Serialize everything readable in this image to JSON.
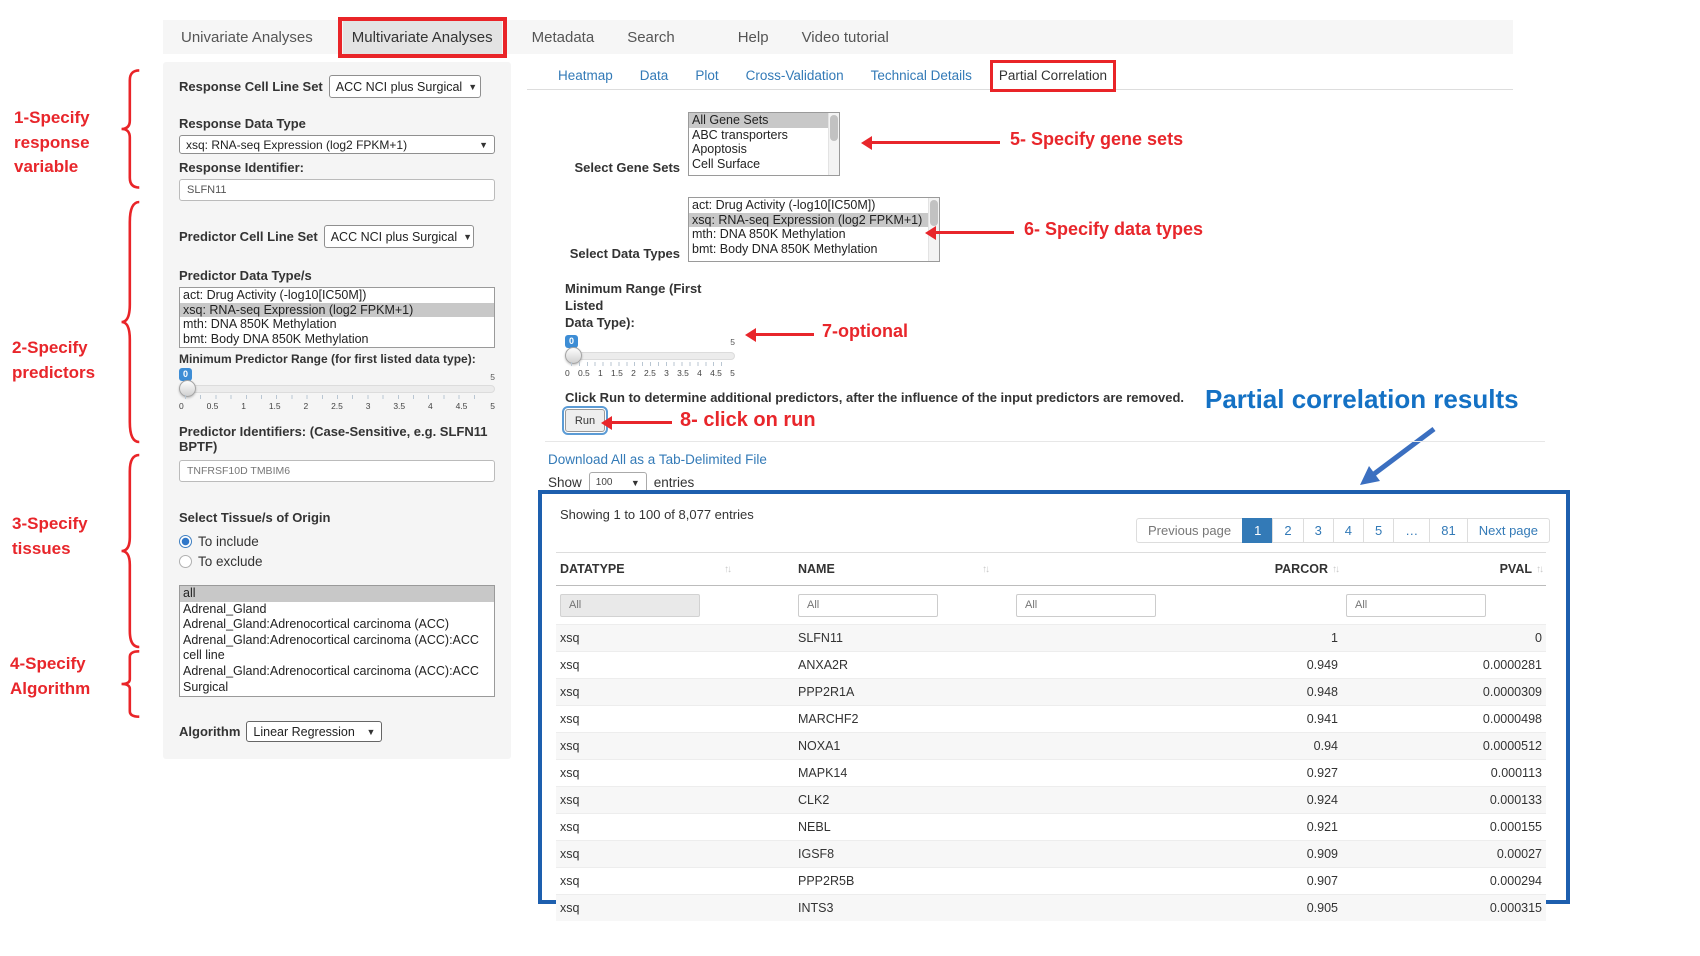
{
  "colors": {
    "annotation_red": "#e92428",
    "annotation_blue": "#1471c4",
    "link_blue": "#337ab7",
    "results_border_blue": "#1d5fae",
    "selection_gray": "#c8c8c8",
    "active_page_bg": "#337ab7"
  },
  "nav": {
    "items": [
      {
        "label": "Univariate Analyses",
        "active": false
      },
      {
        "label": "Multivariate Analyses",
        "active": true
      },
      {
        "label": "Metadata",
        "active": false
      },
      {
        "label": "Search",
        "active": false
      },
      {
        "label": "Help",
        "active": false
      },
      {
        "label": "Video tutorial",
        "active": false
      }
    ]
  },
  "annotations": {
    "left": [
      {
        "text": "1-Specify\nresponse\nvariable"
      },
      {
        "text": "2-Specify\npredictors"
      },
      {
        "text": "3-Specify\ntissues"
      },
      {
        "text": "4-Specify\nAlgorithm"
      }
    ],
    "callouts": [
      {
        "text": "5- Specify gene sets"
      },
      {
        "text": "6- Specify data types"
      },
      {
        "text": "7-optional"
      },
      {
        "text": "8- click on run"
      }
    ],
    "results_title": "Partial correlation results"
  },
  "sidebar": {
    "response_cell_line_set": {
      "label": "Response Cell Line Set",
      "value": "ACC NCI plus Surgical"
    },
    "response_data_type": {
      "label": "Response Data Type",
      "value": "xsq: RNA-seq Expression (log2 FPKM+1)"
    },
    "response_identifier": {
      "label": "Response Identifier:",
      "value": "SLFN11"
    },
    "predictor_cell_line_set": {
      "label": "Predictor Cell Line Set",
      "value": "ACC NCI plus Surgical"
    },
    "predictor_data_types": {
      "label": "Predictor Data Type/s",
      "selected_index": 1,
      "options": [
        "act: Drug Activity (-log10[IC50M])",
        "xsq: RNA-seq Expression (log2 FPKM+1)",
        "mth: DNA 850K Methylation",
        "bmt: Body DNA 850K Methylation"
      ]
    },
    "min_predictor_range": {
      "label": "Minimum Predictor Range (for first listed data type):",
      "value": "0",
      "max_label": "5",
      "ticks": [
        "0",
        "0.5",
        "1",
        "1.5",
        "2",
        "2.5",
        "3",
        "3.5",
        "4",
        "4.5",
        "5"
      ]
    },
    "predictor_identifiers": {
      "label": "Predictor Identifiers: (Case-Sensitive, e.g. SLFN11 BPTF)",
      "value": "TNFRSF10D TMBIM6"
    },
    "tissue_origin": {
      "label": "Select Tissue/s of Origin",
      "options": [
        {
          "label": "To include",
          "selected": true
        },
        {
          "label": "To exclude",
          "selected": false
        }
      ]
    },
    "tissues": {
      "selected_index": 0,
      "options": [
        "all",
        "Adrenal_Gland",
        "Adrenal_Gland:Adrenocortical carcinoma (ACC)",
        "Adrenal_Gland:Adrenocortical carcinoma (ACC):ACC cell line",
        "Adrenal_Gland:Adrenocortical carcinoma (ACC):ACC Surgical"
      ]
    },
    "algorithm": {
      "label": "Algorithm",
      "value": "Linear Regression"
    }
  },
  "main": {
    "tabs": [
      {
        "label": "Heatmap",
        "active": false
      },
      {
        "label": "Data",
        "active": false
      },
      {
        "label": "Plot",
        "active": false
      },
      {
        "label": "Cross-Validation",
        "active": false
      },
      {
        "label": "Technical Details",
        "active": false
      },
      {
        "label": "Partial Correlation",
        "active": true
      }
    ],
    "gene_sets": {
      "label": "Select Gene Sets",
      "selected_index": 0,
      "options": [
        "All Gene Sets",
        "ABC transporters",
        "Apoptosis",
        "Cell Surface"
      ]
    },
    "data_types": {
      "label": "Select Data Types",
      "selected_index": 1,
      "options": [
        "act: Drug Activity (-log10[IC50M])",
        "xsq: RNA-seq Expression (log2 FPKM+1)",
        "mth: DNA 850K Methylation",
        "bmt: Body DNA 850K Methylation"
      ]
    },
    "min_range": {
      "label": "Minimum Range (First Listed\nData Type):",
      "value": "0",
      "max_label": "5",
      "ticks": [
        "0",
        "0.5",
        "1",
        "1.5",
        "2",
        "2.5",
        "3",
        "3.5",
        "4",
        "4.5",
        "5"
      ]
    },
    "run_instruction": "Click Run to determine additional predictors, after the influence of the input predictors are removed.",
    "run_button": "Run",
    "download_link": "Download All as a Tab-Delimited File",
    "show_entries": {
      "prefix": "Show",
      "value": "100",
      "suffix": "entries"
    }
  },
  "results": {
    "summary": "Showing 1 to 100 of 8,077 entries",
    "pagination": {
      "previous": "Previous page",
      "pages": [
        "1",
        "2",
        "3",
        "4",
        "5",
        "…",
        "81"
      ],
      "active_page": "1",
      "next": "Next page"
    },
    "columns": [
      "DATATYPE",
      "NAME",
      "PARCOR",
      "PVAL"
    ],
    "filter_placeholder": "All",
    "rows": [
      {
        "datatype": "xsq",
        "name": "SLFN11",
        "parcor": "1",
        "pval": "0"
      },
      {
        "datatype": "xsq",
        "name": "ANXA2R",
        "parcor": "0.949",
        "pval": "0.0000281"
      },
      {
        "datatype": "xsq",
        "name": "PPP2R1A",
        "parcor": "0.948",
        "pval": "0.0000309"
      },
      {
        "datatype": "xsq",
        "name": "MARCHF2",
        "parcor": "0.941",
        "pval": "0.0000498"
      },
      {
        "datatype": "xsq",
        "name": "NOXA1",
        "parcor": "0.94",
        "pval": "0.0000512"
      },
      {
        "datatype": "xsq",
        "name": "MAPK14",
        "parcor": "0.927",
        "pval": "0.000113"
      },
      {
        "datatype": "xsq",
        "name": "CLK2",
        "parcor": "0.924",
        "pval": "0.000133"
      },
      {
        "datatype": "xsq",
        "name": "NEBL",
        "parcor": "0.921",
        "pval": "0.000155"
      },
      {
        "datatype": "xsq",
        "name": "IGSF8",
        "parcor": "0.909",
        "pval": "0.00027"
      },
      {
        "datatype": "xsq",
        "name": "PPP2R5B",
        "parcor": "0.907",
        "pval": "0.000294"
      },
      {
        "datatype": "xsq",
        "name": "INTS3",
        "parcor": "0.905",
        "pval": "0.000315"
      }
    ]
  }
}
